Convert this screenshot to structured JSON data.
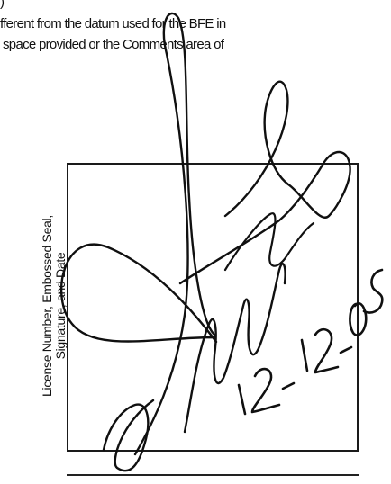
{
  "document": {
    "fragments": [
      ")",
      "fferent from the datum used for the BFE in",
      "space provided or the Comments area of"
    ],
    "seal_box": {
      "label_line1": "License Number, Embossed Seal,",
      "label_line2": "Signature, and Date"
    },
    "signature": {
      "kind": "handwritten-signature",
      "date_text": "12-12-05",
      "ink_color": "#101010"
    }
  }
}
